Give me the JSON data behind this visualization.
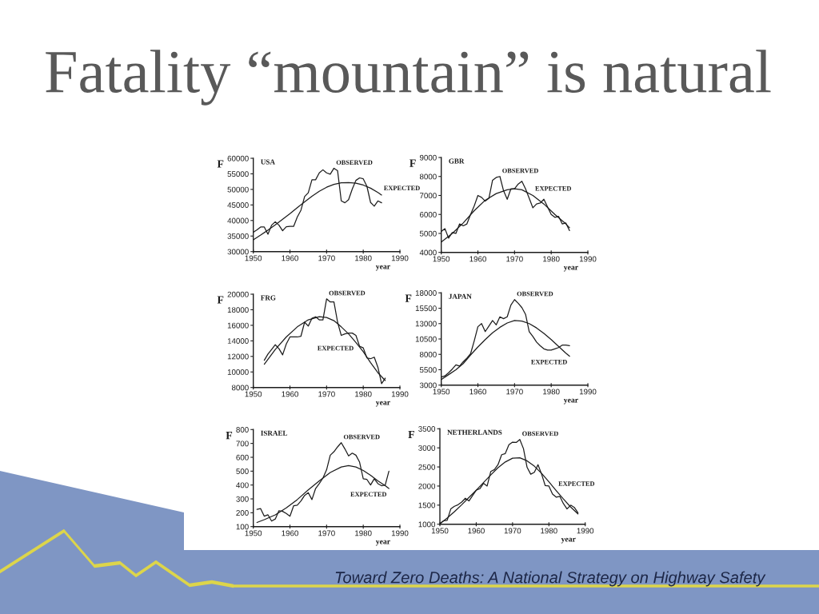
{
  "chart_data": [
    {
      "type": "other",
      "title": "Fatality “mountain” is natural"
    },
    {
      "type": "line",
      "title": "USA",
      "xlabel": "year",
      "ylabel": "F",
      "xlim": [
        1950,
        1990
      ],
      "xticks": [
        1950,
        1960,
        1970,
        1980,
        1990
      ],
      "ylim": [
        30000,
        60000
      ],
      "yticks": [
        30000,
        35000,
        40000,
        45000,
        50000,
        55000,
        60000
      ],
      "series": [
        {
          "name": "OBSERVED",
          "color": "#1c1c1c",
          "x": [
            1950,
            1951,
            1952,
            1953,
            1954,
            1955,
            1956,
            1957,
            1958,
            1959,
            1960,
            1961,
            1962,
            1963,
            1964,
            1965,
            1966,
            1967,
            1968,
            1969,
            1970,
            1971,
            1972,
            1973,
            1974,
            1975,
            1976,
            1977,
            1978,
            1979,
            1980,
            1981,
            1982,
            1983,
            1984,
            1985
          ],
          "values": [
            36200,
            37000,
            37900,
            37900,
            35600,
            38500,
            39600,
            38500,
            36700,
            38000,
            38100,
            38100,
            41100,
            43300,
            47700,
            48900,
            53100,
            53100,
            55300,
            56300,
            55300,
            54900,
            56800,
            56000,
            46300,
            45700,
            46700,
            50100,
            52900,
            53700,
            53400,
            51000,
            45800,
            44600,
            46300,
            45700
          ]
        },
        {
          "name": "EXPECTED",
          "color": "#1c1c1c",
          "x": [
            1950,
            1952,
            1954,
            1956,
            1958,
            1960,
            1962,
            1964,
            1966,
            1968,
            1970,
            1972,
            1974,
            1976,
            1978,
            1980,
            1982,
            1984,
            1985
          ],
          "values": [
            33800,
            35300,
            36900,
            38600,
            40400,
            42200,
            44100,
            46000,
            47800,
            49400,
            50700,
            51600,
            52100,
            52200,
            52000,
            51400,
            50400,
            49000,
            48200
          ]
        }
      ]
    },
    {
      "type": "line",
      "title": "GBR",
      "xlabel": "year",
      "ylabel": "F",
      "xlim": [
        1950,
        1990
      ],
      "xticks": [
        1950,
        1960,
        1970,
        1980,
        1990
      ],
      "ylim": [
        4000,
        9000
      ],
      "yticks": [
        4000,
        5000,
        6000,
        7000,
        8000,
        9000
      ],
      "series": [
        {
          "name": "OBSERVED",
          "color": "#1c1c1c",
          "x": [
            1950,
            1951,
            1952,
            1953,
            1954,
            1955,
            1956,
            1957,
            1958,
            1959,
            1960,
            1961,
            1962,
            1963,
            1964,
            1965,
            1966,
            1967,
            1968,
            1969,
            1970,
            1971,
            1972,
            1973,
            1974,
            1975,
            1976,
            1977,
            1978,
            1979,
            1980,
            1981,
            1982,
            1983,
            1984,
            1985
          ],
          "values": [
            5100,
            5250,
            4750,
            5050,
            5000,
            5500,
            5400,
            5500,
            6000,
            6450,
            7000,
            6900,
            6700,
            6850,
            7800,
            7950,
            8000,
            7250,
            6800,
            7350,
            7350,
            7600,
            7750,
            7350,
            6850,
            6350,
            6550,
            6600,
            6800,
            6400,
            6000,
            5850,
            5900,
            5500,
            5550,
            5150
          ]
        },
        {
          "name": "EXPECTED",
          "color": "#1c1c1c",
          "x": [
            1950,
            1953,
            1956,
            1959,
            1962,
            1965,
            1968,
            1970,
            1972,
            1975,
            1978,
            1981,
            1984,
            1985
          ],
          "values": [
            4550,
            5000,
            5550,
            6200,
            6750,
            7100,
            7300,
            7350,
            7300,
            7000,
            6550,
            6000,
            5500,
            5300
          ]
        }
      ]
    },
    {
      "type": "line",
      "title": "FRG",
      "xlabel": "year",
      "ylabel": "F",
      "xlim": [
        1950,
        1990
      ],
      "xticks": [
        1950,
        1960,
        1970,
        1980,
        1990
      ],
      "ylim": [
        8000,
        20000
      ],
      "yticks": [
        8000,
        10000,
        12000,
        14000,
        16000,
        18000,
        20000
      ],
      "series": [
        {
          "name": "OBSERVED",
          "color": "#1c1c1c",
          "x": [
            1953,
            1954,
            1955,
            1956,
            1957,
            1958,
            1959,
            1960,
            1961,
            1962,
            1963,
            1964,
            1965,
            1966,
            1967,
            1968,
            1969,
            1970,
            1971,
            1972,
            1973,
            1974,
            1975,
            1976,
            1977,
            1978,
            1979,
            1980,
            1981,
            1982,
            1983,
            1984,
            1985,
            1986
          ],
          "values": [
            11500,
            12300,
            12900,
            13500,
            13000,
            12200,
            13600,
            14500,
            14500,
            14500,
            14600,
            16400,
            15900,
            16900,
            17100,
            16700,
            16700,
            19400,
            19000,
            19000,
            16400,
            14700,
            14900,
            15000,
            15000,
            14700,
            13300,
            13100,
            11800,
            11700,
            11900,
            10600,
            8500,
            9200
          ]
        },
        {
          "name": "EXPECTED",
          "color": "#1c1c1c",
          "x": [
            1953,
            1956,
            1959,
            1962,
            1965,
            1968,
            1970,
            1972,
            1974,
            1976,
            1978,
            1980,
            1982,
            1984,
            1986
          ],
          "values": [
            11000,
            12900,
            14500,
            15800,
            16700,
            17100,
            17000,
            16600,
            15800,
            14900,
            13800,
            12600,
            11200,
            9900,
            8900
          ]
        }
      ]
    },
    {
      "type": "line",
      "title": "JAPAN",
      "xlabel": "year",
      "ylabel": "F",
      "xlim": [
        1950,
        1990
      ],
      "xticks": [
        1950,
        1960,
        1970,
        1980,
        1990
      ],
      "ylim": [
        3000,
        18000
      ],
      "yticks": [
        3000,
        5500,
        8000,
        10500,
        13000,
        15500,
        18000
      ],
      "series": [
        {
          "name": "OBSERVED",
          "color": "#1c1c1c",
          "x": [
            1950,
            1951,
            1952,
            1953,
            1954,
            1955,
            1956,
            1957,
            1958,
            1959,
            1960,
            1961,
            1962,
            1963,
            1964,
            1965,
            1966,
            1967,
            1968,
            1969,
            1970,
            1971,
            1972,
            1973,
            1974,
            1975,
            1976,
            1977,
            1978,
            1979,
            1980,
            1981,
            1982,
            1983,
            1984,
            1985
          ],
          "values": [
            4300,
            4500,
            5000,
            5600,
            6300,
            6100,
            6800,
            7400,
            8100,
            10200,
            12500,
            13000,
            11700,
            12600,
            13500,
            12800,
            14100,
            13800,
            14100,
            16000,
            16900,
            16300,
            15600,
            14500,
            11700,
            10900,
            10000,
            9400,
            8900,
            8700,
            8700,
            8900,
            9100,
            9500,
            9500,
            9400
          ]
        },
        {
          "name": "EXPECTED",
          "color": "#1c1c1c",
          "x": [
            1950,
            1952,
            1954,
            1956,
            1958,
            1960,
            1962,
            1964,
            1966,
            1968,
            1970,
            1972,
            1974,
            1976,
            1978,
            1980,
            1982,
            1984,
            1985
          ],
          "values": [
            3900,
            4700,
            5500,
            6500,
            7900,
            9200,
            10400,
            11500,
            12400,
            13100,
            13500,
            13400,
            13000,
            12300,
            11400,
            10400,
            9300,
            8200,
            7700
          ]
        }
      ]
    },
    {
      "type": "line",
      "title": "ISRAEL",
      "xlabel": "year",
      "ylabel": "F",
      "xlim": [
        1950,
        1990
      ],
      "xticks": [
        1950,
        1960,
        1970,
        1980,
        1990
      ],
      "ylim": [
        100,
        800
      ],
      "yticks": [
        100,
        200,
        300,
        400,
        500,
        600,
        700,
        800
      ],
      "series": [
        {
          "name": "OBSERVED",
          "color": "#1c1c1c",
          "x": [
            1951,
            1952,
            1953,
            1954,
            1955,
            1956,
            1957,
            1958,
            1959,
            1960,
            1961,
            1962,
            1963,
            1964,
            1965,
            1966,
            1967,
            1968,
            1969,
            1970,
            1971,
            1972,
            1973,
            1974,
            1975,
            1976,
            1977,
            1978,
            1979,
            1980,
            1981,
            1982,
            1983,
            1984,
            1985,
            1986,
            1987
          ],
          "values": [
            225,
            230,
            175,
            185,
            140,
            155,
            215,
            210,
            195,
            175,
            250,
            255,
            285,
            325,
            345,
            295,
            375,
            410,
            450,
            510,
            615,
            640,
            675,
            705,
            660,
            610,
            630,
            615,
            565,
            445,
            440,
            400,
            445,
            410,
            395,
            400,
            500
          ]
        },
        {
          "name": "EXPECTED",
          "color": "#1c1c1c",
          "x": [
            1951,
            1953,
            1956,
            1959,
            1962,
            1965,
            1968,
            1971,
            1974,
            1976,
            1978,
            1980,
            1982,
            1984,
            1986,
            1987
          ],
          "values": [
            130,
            150,
            185,
            235,
            295,
            365,
            430,
            490,
            530,
            540,
            530,
            505,
            470,
            430,
            395,
            375
          ]
        }
      ]
    },
    {
      "type": "line",
      "title": "NETHERLANDS",
      "xlabel": "year",
      "ylabel": "F",
      "xlim": [
        1950,
        1990
      ],
      "xticks": [
        1950,
        1960,
        1970,
        1980,
        1990
      ],
      "ylim": [
        1000,
        3500
      ],
      "yticks": [
        1000,
        1500,
        2000,
        2500,
        3000,
        3500
      ],
      "series": [
        {
          "name": "OBSERVED",
          "color": "#1c1c1c",
          "x": [
            1950,
            1951,
            1952,
            1953,
            1954,
            1955,
            1956,
            1957,
            1958,
            1959,
            1960,
            1961,
            1962,
            1963,
            1964,
            1965,
            1966,
            1967,
            1968,
            1969,
            1970,
            1971,
            1972,
            1973,
            1974,
            1975,
            1976,
            1977,
            1978,
            1979,
            1980,
            1981,
            1982,
            1983,
            1984,
            1985,
            1986,
            1987,
            1988
          ],
          "values": [
            1020,
            1090,
            1100,
            1400,
            1470,
            1510,
            1580,
            1680,
            1610,
            1750,
            1890,
            1930,
            2070,
            2000,
            2380,
            2430,
            2560,
            2820,
            2850,
            3080,
            3150,
            3140,
            3220,
            2980,
            2490,
            2310,
            2360,
            2560,
            2310,
            2010,
            2000,
            1790,
            1710,
            1730,
            1540,
            1400,
            1500,
            1440,
            1300
          ]
        },
        {
          "name": "EXPECTED",
          "color": "#1c1c1c",
          "x": [
            1950,
            1952,
            1954,
            1956,
            1958,
            1960,
            1962,
            1964,
            1966,
            1968,
            1970,
            1972,
            1974,
            1976,
            1978,
            1980,
            1982,
            1984,
            1986,
            1988
          ],
          "values": [
            1010,
            1160,
            1330,
            1510,
            1700,
            1890,
            2090,
            2290,
            2480,
            2630,
            2730,
            2740,
            2660,
            2520,
            2330,
            2110,
            1880,
            1660,
            1450,
            1270
          ]
        }
      ]
    },
    {
      "type": "other",
      "annotations": [
        "Toward Zero Deaths: A National Strategy on Highway Safety"
      ]
    }
  ]
}
